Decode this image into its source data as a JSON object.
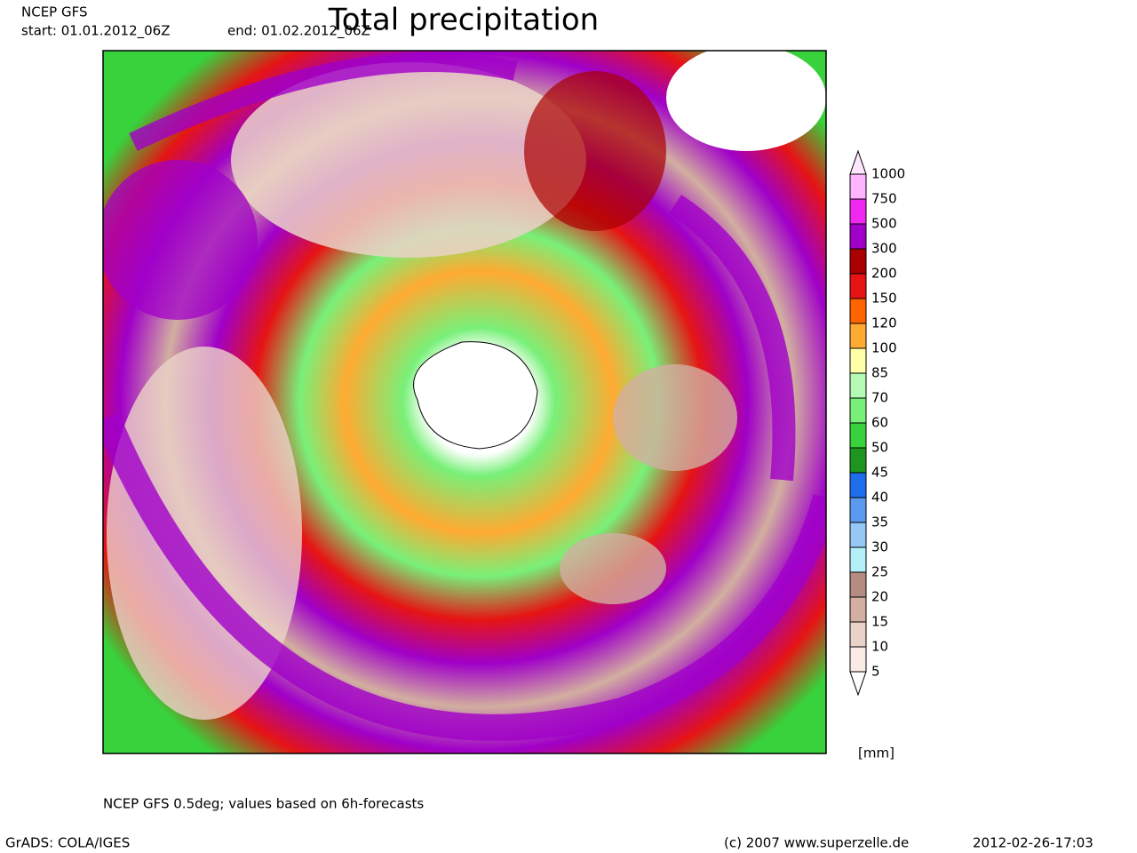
{
  "header": {
    "model": "NCEP GFS",
    "start": "start: 01.01.2012_06Z",
    "end": "end: 01.02.2012_06Z",
    "title": "Total precipitation"
  },
  "legend": {
    "levels": [
      1000,
      750,
      500,
      300,
      200,
      150,
      120,
      100,
      85,
      70,
      60,
      50,
      45,
      40,
      35,
      30,
      25,
      20,
      15,
      10,
      5
    ],
    "colors": [
      "#ffe6ff",
      "#ffb4ff",
      "#f028f0",
      "#a000c8",
      "#aa0000",
      "#e61414",
      "#ff6400",
      "#ffaa32",
      "#ffffaa",
      "#b4fab4",
      "#78f078",
      "#37d23c",
      "#1e961e",
      "#1e6eeb",
      "#5a9bf0",
      "#96c8f5",
      "#b4f0fa",
      "#b48c82",
      "#d2afa0",
      "#ebd2c8",
      "#faebe6",
      "#ffffff"
    ],
    "unit": "[mm]"
  },
  "footer": {
    "note": "NCEP GFS 0.5deg; values based on 6h-forecasts",
    "software": "GrADS: COLA/IGES",
    "copyright": "(c) 2007 www.superzelle.de",
    "timestamp": "2012-02-26-17:03"
  }
}
